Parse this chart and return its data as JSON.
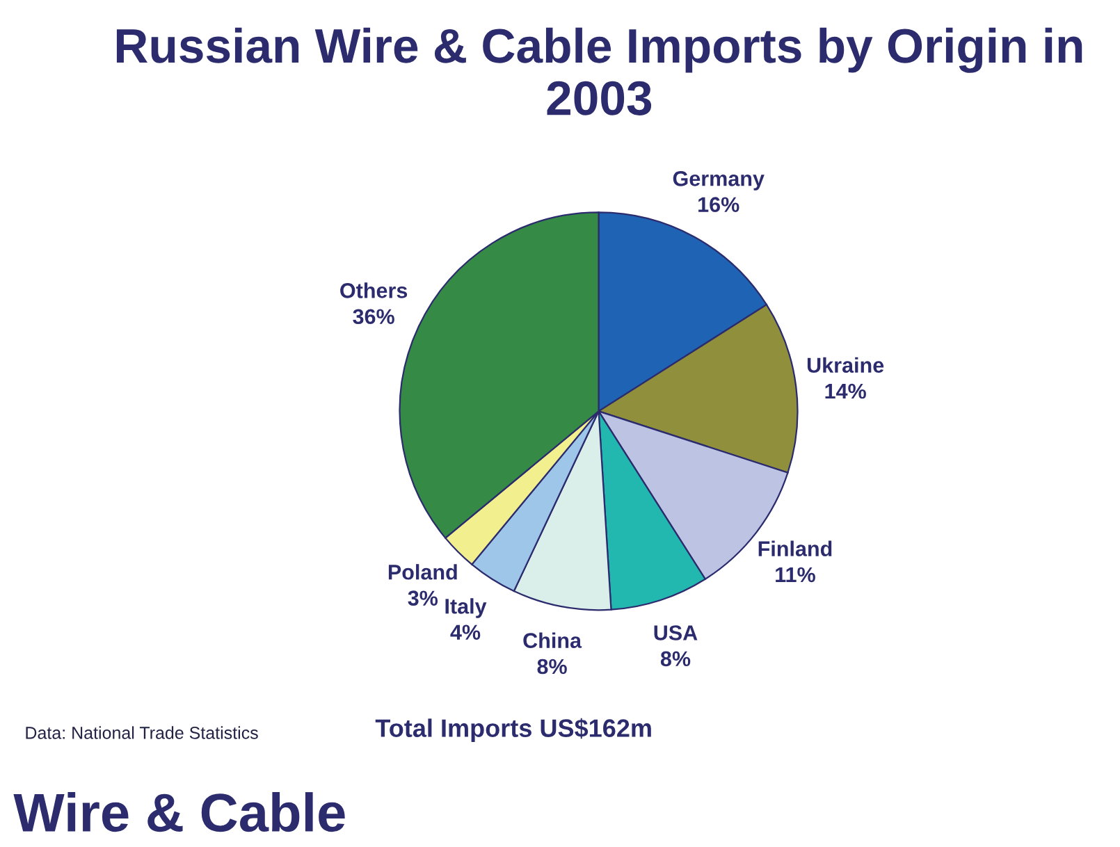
{
  "chart_data": {
    "type": "pie",
    "title": "Russian Wire & Cable Imports by Origin in 2003",
    "categories": [
      "Germany",
      "Ukraine",
      "Finland",
      "USA",
      "China",
      "Italy",
      "Poland",
      "Others"
    ],
    "values": [
      16,
      14,
      11,
      8,
      8,
      4,
      3,
      36
    ],
    "colors": [
      "#1f64b4",
      "#8f8f3c",
      "#bcc3e3",
      "#22b8b0",
      "#daeeea",
      "#9ec6e8",
      "#f2ef8e",
      "#358a45"
    ],
    "value_labels": [
      "16%",
      "14%",
      "11%",
      "8%",
      "8%",
      "4%",
      "3%",
      "36%"
    ],
    "legend": false,
    "annotations": [
      "Data: National Trade Statistics",
      "Total Imports US$162m",
      "Wire & Cable"
    ]
  }
}
